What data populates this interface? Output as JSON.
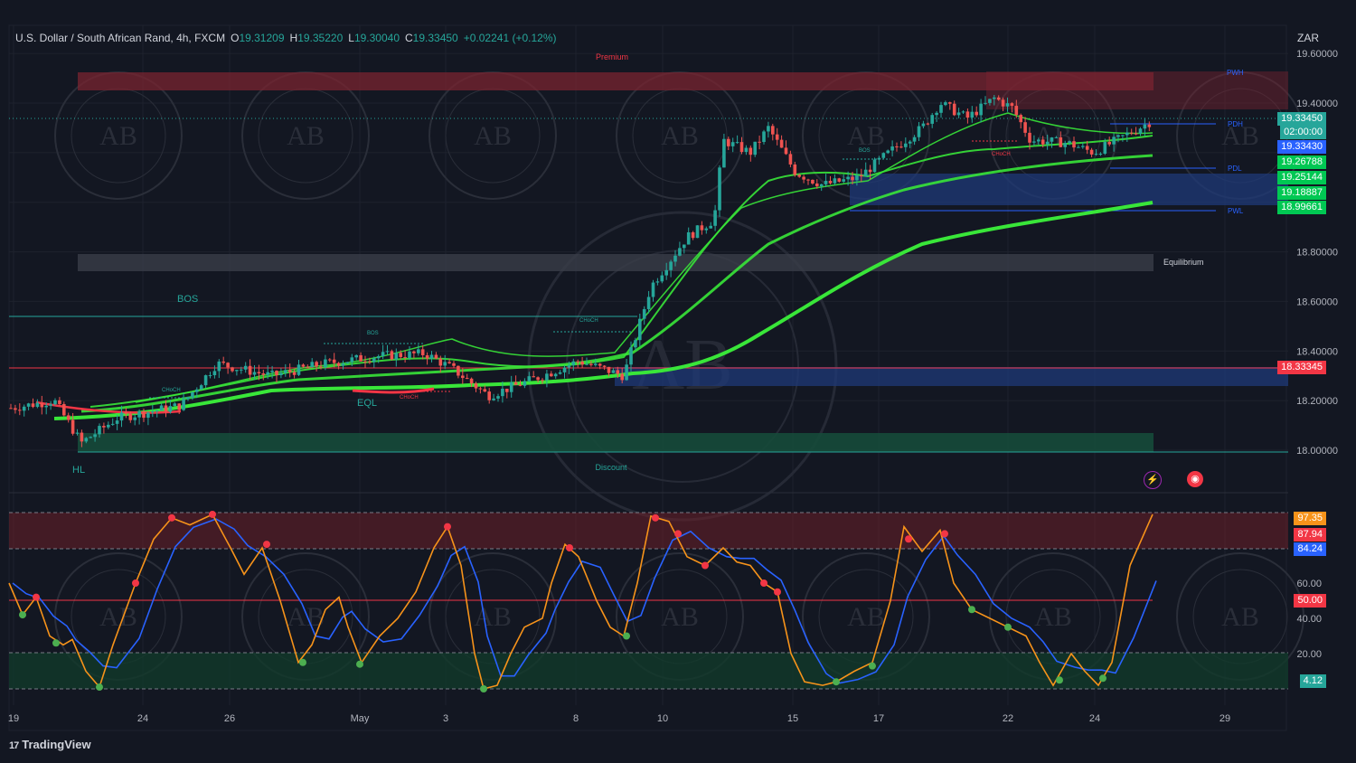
{
  "header": {
    "symbol": "U.S. Dollar / South African Rand, 4h, FXCM",
    "o_label": "O",
    "o_value": "19.31209",
    "h_label": "H",
    "h_value": "19.35220",
    "l_label": "L",
    "l_value": "19.30040",
    "c_label": "C",
    "c_value": "19.33450",
    "change": "+0.02241 (+0.12%)"
  },
  "price_axis": {
    "unit": "ZAR",
    "ticks": [
      "19.60000",
      "19.40000",
      "18.80000",
      "18.60000",
      "18.40000",
      "18.20000",
      "18.00000"
    ],
    "badges": [
      {
        "label": "19.33450",
        "color": "#26a69a"
      },
      {
        "label": "02:00:00",
        "color": "#26a69a"
      },
      {
        "label": "19.33430",
        "color": "#2962ff"
      },
      {
        "label": "19.26788",
        "color": "#00c853"
      },
      {
        "label": "19.25144",
        "color": "#00c853"
      },
      {
        "label": "19.18887",
        "color": "#00c853"
      },
      {
        "label": "18.99661",
        "color": "#00c853"
      },
      {
        "label": "18.33345",
        "color": "#f23645"
      }
    ]
  },
  "osc_axis": {
    "ticks": [
      "60.00",
      "40.00",
      "20.00"
    ],
    "badges": [
      {
        "label": "97.35",
        "color": "#f7931a"
      },
      {
        "label": "87.94",
        "color": "#f23645"
      },
      {
        "label": "84.24",
        "color": "#2962ff"
      },
      {
        "label": "50.00",
        "color": "#f23645"
      },
      {
        "label": "4.12",
        "color": "#26a69a"
      }
    ]
  },
  "time_axis": [
    "19",
    "24",
    "26",
    "May",
    "3",
    "8",
    "10",
    "15",
    "17",
    "22",
    "24",
    "29"
  ],
  "zones": {
    "premium": "Premium",
    "equilibrium": "Equilibrium",
    "discount": "Discount",
    "bos": "BOS",
    "eql": "EQL",
    "hl": "HL",
    "pwh": "PWH",
    "pdh": "PDH",
    "pdl": "PDL",
    "pwl": "PWL",
    "choch": "CHoCH",
    "bos_small": "BOS"
  },
  "brand": {
    "name": "TradingView",
    "mark": "17"
  },
  "watermark_text": "AB",
  "colors": {
    "up": "#26a69a",
    "down": "#ef5350",
    "ema": "#39e639",
    "stoch_k": "#f7931a",
    "stoch_d": "#2962ff"
  }
}
